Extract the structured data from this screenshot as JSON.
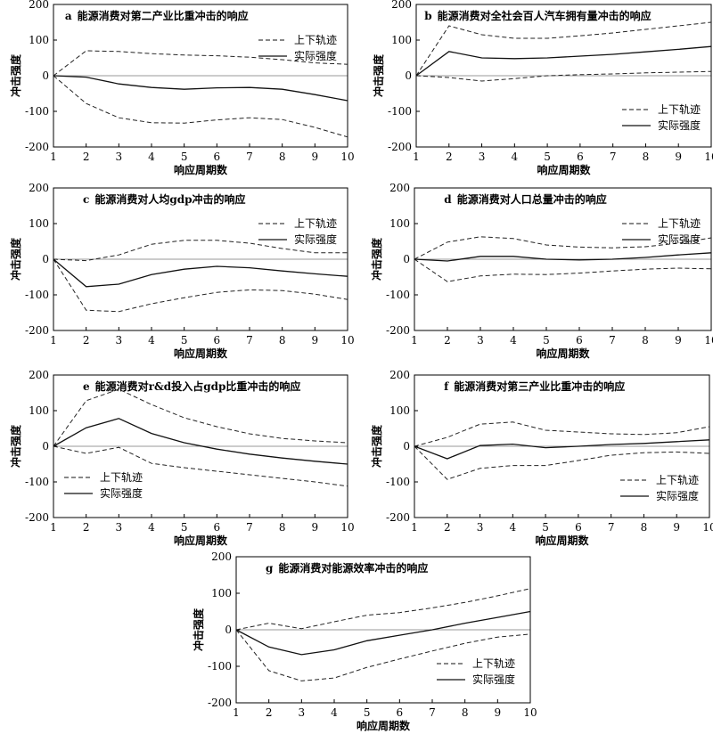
{
  "chart_data": [
    {
      "type": "line",
      "letter": "a",
      "title": "能源消费对第二产业比重冲击的响应",
      "xlabel": "响应周期数",
      "ylabel": "冲击强度",
      "x": [
        1,
        2,
        3,
        4,
        5,
        6,
        7,
        8,
        9,
        10
      ],
      "xlim": [
        1,
        10
      ],
      "ylim": [
        -200,
        200
      ],
      "yticks": [
        200,
        100,
        0,
        -100,
        -200
      ],
      "legend_position": "top-right",
      "series": [
        {
          "name": "上下轨迹",
          "style": "dashed",
          "values": [
            0,
            70,
            68,
            62,
            58,
            56,
            52,
            45,
            36,
            32
          ]
        },
        {
          "name": "上下轨迹",
          "style": "dashed",
          "values": [
            0,
            -78,
            -118,
            -132,
            -133,
            -124,
            -118,
            -123,
            -145,
            -172
          ]
        },
        {
          "name": "实际强度",
          "style": "solid",
          "values": [
            0,
            -4,
            -23,
            -33,
            -38,
            -34,
            -33,
            -38,
            -53,
            -70
          ]
        }
      ]
    },
    {
      "type": "line",
      "letter": "b",
      "title": "能源消费对全社会百人汽车拥有量冲击的响应",
      "xlabel": "响应周期数",
      "ylabel": "冲击强度",
      "x": [
        1,
        2,
        3,
        4,
        5,
        6,
        7,
        8,
        9,
        10
      ],
      "xlim": [
        1,
        10
      ],
      "ylim": [
        -200,
        200
      ],
      "yticks": [
        200,
        100,
        0,
        -100,
        -200
      ],
      "legend_position": "bottom-right",
      "series": [
        {
          "name": "上下轨迹",
          "style": "dashed",
          "values": [
            0,
            140,
            115,
            105,
            105,
            112,
            120,
            130,
            140,
            150
          ]
        },
        {
          "name": "上下轨迹",
          "style": "dashed",
          "values": [
            0,
            -5,
            -15,
            -8,
            0,
            3,
            5,
            8,
            10,
            12
          ]
        },
        {
          "name": "实际强度",
          "style": "solid",
          "values": [
            0,
            68,
            50,
            48,
            50,
            55,
            60,
            67,
            74,
            82
          ]
        }
      ]
    },
    {
      "type": "line",
      "letter": "c",
      "title": "能源消费对人均gdp冲击的响应",
      "xlabel": "响应周期数",
      "ylabel": "冲击强度",
      "x": [
        1,
        2,
        3,
        4,
        5,
        6,
        7,
        8,
        9,
        10
      ],
      "xlim": [
        1,
        10
      ],
      "ylim": [
        -200,
        200
      ],
      "yticks": [
        200,
        100,
        0,
        -100,
        -200
      ],
      "legend_position": "top-right",
      "series": [
        {
          "name": "上下轨迹",
          "style": "dashed",
          "values": [
            0,
            -4,
            12,
            42,
            53,
            53,
            45,
            30,
            18,
            18
          ]
        },
        {
          "name": "上下轨迹",
          "style": "dashed",
          "values": [
            0,
            -143,
            -147,
            -125,
            -108,
            -93,
            -86,
            -88,
            -98,
            -113
          ]
        },
        {
          "name": "实际强度",
          "style": "solid",
          "values": [
            0,
            -77,
            -70,
            -43,
            -28,
            -20,
            -24,
            -33,
            -41,
            -48
          ]
        }
      ]
    },
    {
      "type": "line",
      "letter": "d",
      "title": "能源消费对人口总量冲击的响应",
      "xlabel": "响应周期数",
      "ylabel": "冲击强度",
      "x": [
        1,
        2,
        3,
        4,
        5,
        6,
        7,
        8,
        9,
        10
      ],
      "xlim": [
        1,
        10
      ],
      "ylim": [
        -200,
        200
      ],
      "yticks": [
        200,
        100,
        0,
        -100,
        -200
      ],
      "legend_position": "top-right",
      "series": [
        {
          "name": "上下轨迹",
          "style": "dashed",
          "values": [
            0,
            48,
            63,
            58,
            40,
            34,
            32,
            35,
            45,
            60
          ]
        },
        {
          "name": "上下轨迹",
          "style": "dashed",
          "values": [
            0,
            -63,
            -47,
            -42,
            -43,
            -39,
            -33,
            -28,
            -25,
            -27
          ]
        },
        {
          "name": "实际强度",
          "style": "solid",
          "values": [
            0,
            -5,
            8,
            8,
            0,
            -2,
            0,
            5,
            12,
            18
          ]
        }
      ]
    },
    {
      "type": "line",
      "letter": "e",
      "title": "能源消费对r&d投入占gdp比重冲击的响应",
      "xlabel": "响应周期数",
      "ylabel": "冲击强度",
      "x": [
        1,
        2,
        3,
        4,
        5,
        6,
        7,
        8,
        9,
        10
      ],
      "xlim": [
        1,
        10
      ],
      "ylim": [
        -200,
        200
      ],
      "yticks": [
        200,
        100,
        0,
        -100,
        -200
      ],
      "legend_position": "bottom-left",
      "series": [
        {
          "name": "上下轨迹",
          "style": "dashed",
          "values": [
            0,
            128,
            160,
            117,
            80,
            55,
            35,
            22,
            15,
            10
          ]
        },
        {
          "name": "上下轨迹",
          "style": "dashed",
          "values": [
            0,
            -20,
            -3,
            -48,
            -60,
            -70,
            -80,
            -90,
            -100,
            -112
          ]
        },
        {
          "name": "实际强度",
          "style": "solid",
          "values": [
            0,
            52,
            78,
            36,
            10,
            -8,
            -22,
            -33,
            -42,
            -50
          ]
        }
      ]
    },
    {
      "type": "line",
      "letter": "f",
      "title": "能源消费对第三产业比重冲击的响应",
      "xlabel": "响应周期数",
      "ylabel": "冲击强度",
      "x": [
        1,
        2,
        3,
        4,
        5,
        6,
        7,
        8,
        9,
        10
      ],
      "xlim": [
        1,
        10
      ],
      "ylim": [
        -200,
        200
      ],
      "yticks": [
        200,
        100,
        0,
        -100,
        -200
      ],
      "legend_position": "bottom-right",
      "series": [
        {
          "name": "上下轨迹",
          "style": "dashed",
          "values": [
            0,
            25,
            62,
            68,
            45,
            40,
            35,
            33,
            38,
            55
          ]
        },
        {
          "name": "上下轨迹",
          "style": "dashed",
          "values": [
            0,
            -93,
            -62,
            -54,
            -54,
            -40,
            -25,
            -18,
            -16,
            -20
          ]
        },
        {
          "name": "实际强度",
          "style": "solid",
          "values": [
            0,
            -35,
            2,
            6,
            -4,
            0,
            5,
            8,
            13,
            18
          ]
        }
      ]
    },
    {
      "type": "line",
      "letter": "g",
      "title": "能源消费对能源效率冲击的响应",
      "xlabel": "响应周期数",
      "ylabel": "冲击强度",
      "x": [
        1,
        2,
        3,
        4,
        5,
        6,
        7,
        8,
        9,
        10
      ],
      "xlim": [
        1,
        10
      ],
      "ylim": [
        -200,
        200
      ],
      "yticks": [
        200,
        100,
        0,
        -100,
        -200
      ],
      "legend_position": "bottom-right",
      "series": [
        {
          "name": "上下轨迹",
          "style": "dashed",
          "values": [
            0,
            18,
            3,
            22,
            40,
            47,
            60,
            75,
            93,
            113
          ]
        },
        {
          "name": "上下轨迹",
          "style": "dashed",
          "values": [
            0,
            -112,
            -140,
            -132,
            -103,
            -80,
            -58,
            -37,
            -20,
            -12
          ]
        },
        {
          "name": "实际强度",
          "style": "solid",
          "values": [
            0,
            -47,
            -68,
            -55,
            -30,
            -15,
            0,
            18,
            34,
            50
          ]
        }
      ]
    }
  ]
}
